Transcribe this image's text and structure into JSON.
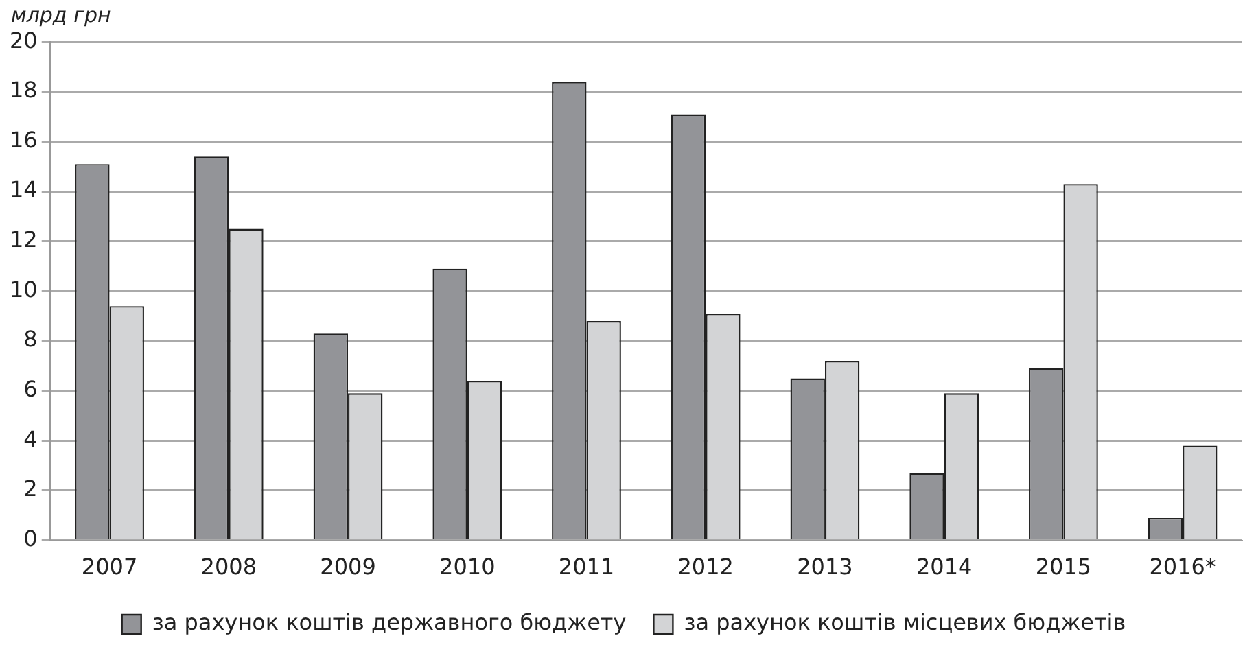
{
  "chart_data": {
    "type": "bar",
    "ylabel": "млрд грн",
    "categories": [
      "2007",
      "2008",
      "2009",
      "2010",
      "2011",
      "2012",
      "2013",
      "2014",
      "2015",
      "2016*"
    ],
    "series": [
      {
        "name": "за рахунок коштів державного бюджету",
        "color": "#939498",
        "values": [
          15.1,
          15.4,
          8.3,
          10.9,
          18.4,
          17.1,
          6.5,
          2.7,
          6.9,
          0.9
        ]
      },
      {
        "name": "за рахунок коштів місцевих бюджетів",
        "color": "#d3d4d6",
        "values": [
          9.4,
          12.5,
          5.9,
          6.4,
          8.8,
          9.1,
          7.2,
          5.9,
          14.3,
          3.8
        ]
      }
    ],
    "ylim": [
      0,
      20
    ],
    "yticks": [
      0,
      2,
      4,
      6,
      8,
      10,
      12,
      14,
      16,
      18,
      20
    ],
    "grid": "y",
    "legend": "bottom"
  }
}
